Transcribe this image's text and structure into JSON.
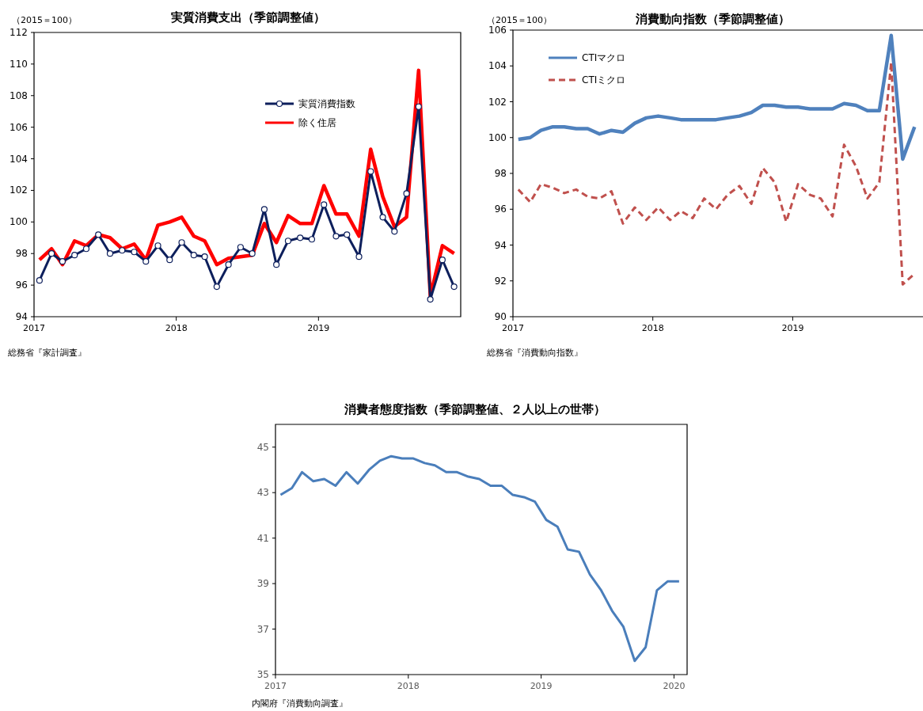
{
  "chart_data": [
    {
      "type": "line",
      "title": "実質消費支出（季節調整値）",
      "ylabel": "（2015＝100）",
      "annotations": [
        "総務省『家計調査』"
      ],
      "legend": "top right",
      "x": [
        "2017-01-15",
        "2017-02-15",
        "2017-03-15",
        "2017-04-15",
        "2017-05-15",
        "2017-06-15",
        "2017-07-15",
        "2017-08-15",
        "2017-09-15",
        "2017-10-15",
        "2017-11-15",
        "2017-12-15",
        "2018-01-15",
        "2018-02-15",
        "2018-03-15",
        "2018-04-15",
        "2018-05-15",
        "2018-06-15",
        "2018-07-15",
        "2018-08-15",
        "2018-09-15",
        "2018-10-15",
        "2018-11-15",
        "2018-12-15",
        "2019-01-15",
        "2019-02-15",
        "2019-03-15",
        "2019-04-15",
        "2019-05-15",
        "2019-06-15",
        "2019-07-15",
        "2019-08-15",
        "2019-09-15",
        "2019-10-15",
        "2019-11-15",
        "2019-12-15"
      ],
      "xlim": [
        "2017-01-01",
        "2020-01-01"
      ],
      "xticks": [
        {
          "value": "2017-01-01",
          "label": "2017"
        },
        {
          "value": "2018-01-01",
          "label": "2018"
        },
        {
          "value": "2019-01-01",
          "label": "2019"
        }
      ],
      "ylim": [
        94,
        112
      ],
      "yticks": [
        94,
        96,
        98,
        100,
        102,
        104,
        106,
        108,
        110,
        112
      ],
      "series": [
        {
          "name": "除く住居",
          "color": "#ff0000",
          "values": [
            97.6,
            98.3,
            97.3,
            98.8,
            98.5,
            99.2,
            99.0,
            98.3,
            98.6,
            97.6,
            99.8,
            100.0,
            100.3,
            99.1,
            98.8,
            97.3,
            97.7,
            97.8,
            97.9,
            99.9,
            98.7,
            100.4,
            99.9,
            99.9,
            102.3,
            100.5,
            100.5,
            99.1,
            104.6,
            101.6,
            99.7,
            100.3,
            109.6,
            95.3,
            98.5,
            98.0
          ]
        },
        {
          "name": "実質消費指数",
          "color": "#0d1f5c",
          "marker": "circle",
          "values": [
            96.3,
            98.0,
            97.5,
            97.9,
            98.3,
            99.2,
            98.0,
            98.2,
            98.1,
            97.5,
            98.5,
            97.6,
            98.7,
            97.9,
            97.8,
            95.9,
            97.3,
            98.4,
            98.0,
            100.8,
            97.3,
            98.8,
            99.0,
            98.9,
            101.1,
            99.1,
            99.2,
            97.8,
            103.2,
            100.3,
            99.4,
            101.8,
            107.3,
            95.1,
            97.6,
            95.9
          ]
        }
      ]
    },
    {
      "type": "line",
      "title": "消費動向指数（季節調整値）",
      "ylabel": "（2015＝100）",
      "annotations": [
        "総務省『消費動向指数』"
      ],
      "legend": "top left",
      "x": [
        "2017-01-15",
        "2017-02-15",
        "2017-03-15",
        "2017-04-15",
        "2017-05-15",
        "2017-06-15",
        "2017-07-15",
        "2017-08-15",
        "2017-09-15",
        "2017-10-15",
        "2017-11-15",
        "2017-12-15",
        "2018-01-15",
        "2018-02-15",
        "2018-03-15",
        "2018-04-15",
        "2018-05-15",
        "2018-06-15",
        "2018-07-15",
        "2018-08-15",
        "2018-09-15",
        "2018-10-15",
        "2018-11-15",
        "2018-12-15",
        "2019-01-15",
        "2019-02-15",
        "2019-03-15",
        "2019-04-15",
        "2019-05-15",
        "2019-06-15",
        "2019-07-15",
        "2019-08-15",
        "2019-09-15",
        "2019-10-15",
        "2019-11-15"
      ],
      "xlim": [
        "2017-01-01",
        "2019-12-07"
      ],
      "xticks": [
        {
          "value": "2017-01-01",
          "label": "2017"
        },
        {
          "value": "2018-01-01",
          "label": "2018"
        },
        {
          "value": "2019-01-01",
          "label": "2019"
        }
      ],
      "ylim": [
        90,
        106
      ],
      "yticks": [
        90,
        92,
        94,
        96,
        98,
        100,
        102,
        104,
        106
      ],
      "series": [
        {
          "name": "CTIマクロ",
          "color": "#4f81bd",
          "values": [
            99.9,
            100.0,
            100.4,
            100.6,
            100.6,
            100.5,
            100.5,
            100.2,
            100.4,
            100.3,
            100.8,
            101.1,
            101.2,
            101.1,
            101.0,
            101.0,
            101.0,
            101.0,
            101.1,
            101.2,
            101.4,
            101.8,
            101.8,
            101.7,
            101.7,
            101.6,
            101.6,
            101.6,
            101.9,
            101.8,
            101.5,
            101.5,
            105.7,
            98.8,
            100.6
          ]
        },
        {
          "name": "CTIミクロ",
          "color": "#c0504d",
          "line_style": "dashed",
          "values": [
            97.1,
            96.4,
            97.4,
            97.2,
            96.9,
            97.1,
            96.7,
            96.6,
            97.0,
            95.2,
            96.1,
            95.4,
            96.1,
            95.4,
            95.9,
            95.5,
            96.6,
            96.0,
            96.8,
            97.3,
            96.3,
            98.3,
            97.5,
            95.3,
            97.4,
            96.8,
            96.6,
            95.6,
            99.6,
            98.4,
            96.6,
            97.5,
            104.2,
            91.8,
            92.4
          ]
        }
      ]
    },
    {
      "type": "line",
      "title": "消費者態度指数（季節調整値、２人以上の世帯）",
      "annotations": [
        "内閣府『消費動向調査』"
      ],
      "x": [
        "2017-01-15",
        "2017-02-15",
        "2017-03-15",
        "2017-04-15",
        "2017-05-15",
        "2017-06-15",
        "2017-07-15",
        "2017-08-15",
        "2017-09-15",
        "2017-10-15",
        "2017-11-15",
        "2017-12-15",
        "2018-01-15",
        "2018-02-15",
        "2018-03-15",
        "2018-04-15",
        "2018-05-15",
        "2018-06-15",
        "2018-07-15",
        "2018-08-15",
        "2018-09-15",
        "2018-10-15",
        "2018-11-15",
        "2018-12-15",
        "2019-01-15",
        "2019-02-15",
        "2019-03-15",
        "2019-04-15",
        "2019-05-15",
        "2019-06-15",
        "2019-07-15",
        "2019-08-15",
        "2019-09-15",
        "2019-10-15",
        "2019-11-15",
        "2019-12-15",
        "2020-01-15"
      ],
      "xlim": [
        "2017-01-01",
        "2020-02-06"
      ],
      "xticks": [
        {
          "value": "2017-01-01",
          "label": "2017"
        },
        {
          "value": "2018-01-01",
          "label": "2018"
        },
        {
          "value": "2019-01-01",
          "label": "2019"
        },
        {
          "value": "2020-01-01",
          "label": "2020"
        }
      ],
      "ylim": [
        35,
        46
      ],
      "yticks": [
        35,
        37,
        39,
        41,
        43,
        45
      ],
      "series": [
        {
          "color": "#4a7ebb",
          "values": [
            42.9,
            43.2,
            43.9,
            43.5,
            43.6,
            43.3,
            43.9,
            43.4,
            44.0,
            44.4,
            44.6,
            44.5,
            44.5,
            44.3,
            44.2,
            43.9,
            43.9,
            43.7,
            43.6,
            43.3,
            43.3,
            42.9,
            42.8,
            42.6,
            41.8,
            41.5,
            40.5,
            40.4,
            39.4,
            38.7,
            37.8,
            37.1,
            35.6,
            36.2,
            38.7,
            39.1,
            39.1
          ]
        }
      ]
    }
  ]
}
